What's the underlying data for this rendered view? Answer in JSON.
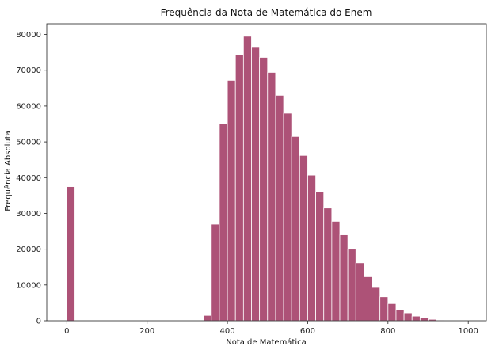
{
  "chart_data": {
    "type": "bar",
    "title": "Frequência da Nota de Matemática do Enem",
    "xlabel": "Nota de Matemática",
    "ylabel": "Frequência Absoluta",
    "xlim": [
      -50,
      1045
    ],
    "ylim": [
      0,
      83000
    ],
    "xticks": [
      0,
      200,
      400,
      600,
      800,
      1000
    ],
    "yticks": [
      0,
      10000,
      20000,
      30000,
      40000,
      50000,
      60000,
      70000,
      80000
    ],
    "bin_width": 20,
    "bar_color": "#ad5277",
    "bar_edge_color": "#ffffff",
    "grid": false,
    "bins": [
      {
        "x": 0,
        "value": 37500
      },
      {
        "x": 340,
        "value": 1500
      },
      {
        "x": 360,
        "value": 27000
      },
      {
        "x": 380,
        "value": 55000
      },
      {
        "x": 400,
        "value": 67200
      },
      {
        "x": 420,
        "value": 74300
      },
      {
        "x": 440,
        "value": 79500
      },
      {
        "x": 460,
        "value": 76600
      },
      {
        "x": 480,
        "value": 73600
      },
      {
        "x": 500,
        "value": 69400
      },
      {
        "x": 520,
        "value": 63000
      },
      {
        "x": 540,
        "value": 58000
      },
      {
        "x": 560,
        "value": 51500
      },
      {
        "x": 580,
        "value": 46200
      },
      {
        "x": 600,
        "value": 40700
      },
      {
        "x": 620,
        "value": 36000
      },
      {
        "x": 640,
        "value": 31500
      },
      {
        "x": 660,
        "value": 27800
      },
      {
        "x": 680,
        "value": 24000
      },
      {
        "x": 700,
        "value": 20000
      },
      {
        "x": 720,
        "value": 16200
      },
      {
        "x": 740,
        "value": 12300
      },
      {
        "x": 760,
        "value": 9300
      },
      {
        "x": 780,
        "value": 6700
      },
      {
        "x": 800,
        "value": 4800
      },
      {
        "x": 820,
        "value": 3100
      },
      {
        "x": 840,
        "value": 2200
      },
      {
        "x": 860,
        "value": 1300
      },
      {
        "x": 880,
        "value": 800
      },
      {
        "x": 900,
        "value": 400
      },
      {
        "x": 920,
        "value": 200
      },
      {
        "x": 940,
        "value": 100
      },
      {
        "x": 960,
        "value": 50
      },
      {
        "x": 980,
        "value": 20
      }
    ]
  }
}
